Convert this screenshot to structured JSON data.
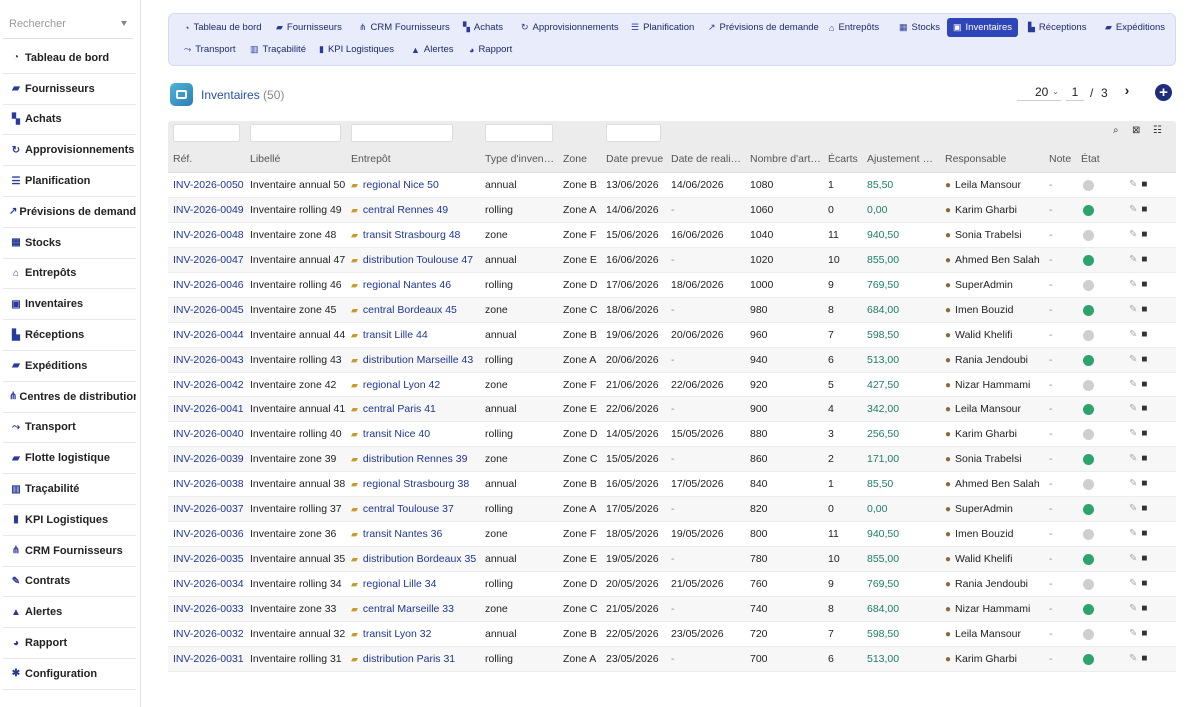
{
  "sidebar": {
    "search_placeholder": "Rechercher",
    "items": [
      {
        "label": "Tableau de bord",
        "icon": "gauge-icon",
        "glyph": "◔"
      },
      {
        "label": "Fournisseurs",
        "icon": "truck-icon",
        "glyph": "▰"
      },
      {
        "label": "Achats",
        "icon": "cart-icon",
        "glyph": "▚"
      },
      {
        "label": "Approvisionnements",
        "icon": "refresh-icon",
        "glyph": "↻"
      },
      {
        "label": "Planification",
        "icon": "list-icon",
        "glyph": "☰"
      },
      {
        "label": "Prévisions de demande",
        "icon": "chart-line-icon",
        "glyph": "↗"
      },
      {
        "label": "Stocks",
        "icon": "boxes-icon",
        "glyph": "▦"
      },
      {
        "label": "Entrepôts",
        "icon": "warehouse-icon",
        "glyph": "⌂"
      },
      {
        "label": "Inventaires",
        "icon": "clipboard-check-icon",
        "glyph": "▣"
      },
      {
        "label": "Réceptions",
        "icon": "dolly-icon",
        "glyph": "▙"
      },
      {
        "label": "Expéditions",
        "icon": "shipping-icon",
        "glyph": "▰"
      },
      {
        "label": "Centres de distribution",
        "icon": "network-icon",
        "glyph": "⋔"
      },
      {
        "label": "Transport",
        "icon": "route-icon",
        "glyph": "⤳"
      },
      {
        "label": "Flotte logistique",
        "icon": "truck-fleet-icon",
        "glyph": "▰"
      },
      {
        "label": "Traçabilité",
        "icon": "barcode-icon",
        "glyph": "▥"
      },
      {
        "label": "KPI Logistiques",
        "icon": "chart-bar-icon",
        "glyph": "▮"
      },
      {
        "label": "CRM Fournisseurs",
        "icon": "sitemap-icon",
        "glyph": "⋔"
      },
      {
        "label": "Contrats",
        "icon": "contract-icon",
        "glyph": "✎"
      },
      {
        "label": "Alertes",
        "icon": "warning-icon",
        "glyph": "▲"
      },
      {
        "label": "Rapport",
        "icon": "pie-chart-icon",
        "glyph": "◕"
      },
      {
        "label": "Configuration",
        "icon": "gear-icon",
        "glyph": "✱"
      }
    ]
  },
  "topnav": {
    "tabs": [
      {
        "label": "Tableau de bord",
        "icon": "gauge-icon",
        "glyph": "◔",
        "active": false
      },
      {
        "label": "Fournisseurs",
        "icon": "truck-icon",
        "glyph": "▰",
        "active": false
      },
      {
        "label": "CRM Fournisseurs",
        "icon": "sitemap-icon",
        "glyph": "⋔",
        "active": false
      },
      {
        "label": "Achats",
        "icon": "cart-icon",
        "glyph": "▚",
        "active": false
      },
      {
        "label": "Approvisionnements",
        "icon": "refresh-icon",
        "glyph": "↻",
        "active": false
      },
      {
        "label": "Planification",
        "icon": "list-icon",
        "glyph": "☰",
        "active": false
      },
      {
        "label": "Prévisions de demande",
        "icon": "chart-line-icon",
        "glyph": "↗",
        "active": false
      },
      {
        "label": "Entrepôts",
        "icon": "warehouse-icon",
        "glyph": "⌂",
        "active": false
      },
      {
        "label": "Stocks",
        "icon": "boxes-icon",
        "glyph": "▦",
        "active": false
      },
      {
        "label": "Inventaires",
        "icon": "clipboard-check-icon",
        "glyph": "▣",
        "active": true
      },
      {
        "label": "Réceptions",
        "icon": "dolly-icon",
        "glyph": "▙",
        "active": false
      },
      {
        "label": "Expéditions",
        "icon": "shipping-icon",
        "glyph": "▰",
        "active": false
      },
      {
        "label": "Transport",
        "icon": "route-icon",
        "glyph": "⤳",
        "active": false
      },
      {
        "label": "Traçabilité",
        "icon": "barcode-icon",
        "glyph": "▥",
        "active": false
      },
      {
        "label": "KPI Logistiques",
        "icon": "chart-bar-icon",
        "glyph": "▮",
        "active": false
      },
      {
        "label": "Alertes",
        "icon": "warning-icon",
        "glyph": "▲",
        "active": false
      },
      {
        "label": "Rapport",
        "icon": "pie-chart-icon",
        "glyph": "◕",
        "active": false
      }
    ]
  },
  "header": {
    "title": "Inventaires",
    "count": "(50)",
    "page_size": "20",
    "current_page": "1",
    "page_sep": "/",
    "total_pages": "3"
  },
  "table": {
    "columns": [
      "Réf.",
      "Libellé",
      "Entrepôt",
      "Type d'inven…",
      "Zone",
      "Date prevue",
      "Date de reali…",
      "Nombre d'art…",
      "Écarts",
      "Ajustement …",
      "Responsable",
      "Note",
      "État"
    ],
    "rows": [
      {
        "ref": "INV-2026-0050",
        "label": "Inventaire annual 50",
        "warehouse": "regional Nice 50",
        "type": "annual",
        "zone": "Zone B",
        "planned": "13/06/2026",
        "done": "14/06/2026",
        "items": "1080",
        "gaps": "1",
        "adjust": "85,50",
        "owner": "Leila Mansour",
        "note": "-",
        "active": false
      },
      {
        "ref": "INV-2026-0049",
        "label": "Inventaire rolling 49",
        "warehouse": "central Rennes 49",
        "type": "rolling",
        "zone": "Zone A",
        "planned": "14/06/2026",
        "done": "-",
        "items": "1060",
        "gaps": "0",
        "adjust": "0,00",
        "owner": "Karim Gharbi",
        "note": "-",
        "active": true
      },
      {
        "ref": "INV-2026-0048",
        "label": "Inventaire zone 48",
        "warehouse": "transit Strasbourg 48",
        "type": "zone",
        "zone": "Zone F",
        "planned": "15/06/2026",
        "done": "16/06/2026",
        "items": "1040",
        "gaps": "11",
        "adjust": "940,50",
        "owner": "Sonia Trabelsi",
        "note": "-",
        "active": false
      },
      {
        "ref": "INV-2026-0047",
        "label": "Inventaire annual 47",
        "warehouse": "distribution Toulouse 47",
        "type": "annual",
        "zone": "Zone E",
        "planned": "16/06/2026",
        "done": "-",
        "items": "1020",
        "gaps": "10",
        "adjust": "855,00",
        "owner": "Ahmed Ben Salah",
        "note": "-",
        "active": true
      },
      {
        "ref": "INV-2026-0046",
        "label": "Inventaire rolling 46",
        "warehouse": "regional Nantes 46",
        "type": "rolling",
        "zone": "Zone D",
        "planned": "17/06/2026",
        "done": "18/06/2026",
        "items": "1000",
        "gaps": "9",
        "adjust": "769,50",
        "owner": "SuperAdmin",
        "note": "-",
        "active": false
      },
      {
        "ref": "INV-2026-0045",
        "label": "Inventaire zone 45",
        "warehouse": "central Bordeaux 45",
        "type": "zone",
        "zone": "Zone C",
        "planned": "18/06/2026",
        "done": "-",
        "items": "980",
        "gaps": "8",
        "adjust": "684,00",
        "owner": "Imen Bouzid",
        "note": "-",
        "active": true
      },
      {
        "ref": "INV-2026-0044",
        "label": "Inventaire annual 44",
        "warehouse": "transit Lille 44",
        "type": "annual",
        "zone": "Zone B",
        "planned": "19/06/2026",
        "done": "20/06/2026",
        "items": "960",
        "gaps": "7",
        "adjust": "598,50",
        "owner": "Walid Khelifi",
        "note": "-",
        "active": false
      },
      {
        "ref": "INV-2026-0043",
        "label": "Inventaire rolling 43",
        "warehouse": "distribution Marseille 43",
        "type": "rolling",
        "zone": "Zone A",
        "planned": "20/06/2026",
        "done": "-",
        "items": "940",
        "gaps": "6",
        "adjust": "513,00",
        "owner": "Rania Jendoubi",
        "note": "-",
        "active": true
      },
      {
        "ref": "INV-2026-0042",
        "label": "Inventaire zone 42",
        "warehouse": "regional Lyon 42",
        "type": "zone",
        "zone": "Zone F",
        "planned": "21/06/2026",
        "done": "22/06/2026",
        "items": "920",
        "gaps": "5",
        "adjust": "427,50",
        "owner": "Nizar Hammami",
        "note": "-",
        "active": false
      },
      {
        "ref": "INV-2026-0041",
        "label": "Inventaire annual 41",
        "warehouse": "central Paris 41",
        "type": "annual",
        "zone": "Zone E",
        "planned": "22/06/2026",
        "done": "-",
        "items": "900",
        "gaps": "4",
        "adjust": "342,00",
        "owner": "Leila Mansour",
        "note": "-",
        "active": true
      },
      {
        "ref": "INV-2026-0040",
        "label": "Inventaire rolling 40",
        "warehouse": "transit Nice 40",
        "type": "rolling",
        "zone": "Zone D",
        "planned": "14/05/2026",
        "done": "15/05/2026",
        "items": "880",
        "gaps": "3",
        "adjust": "256,50",
        "owner": "Karim Gharbi",
        "note": "-",
        "active": false
      },
      {
        "ref": "INV-2026-0039",
        "label": "Inventaire zone 39",
        "warehouse": "distribution Rennes 39",
        "type": "zone",
        "zone": "Zone C",
        "planned": "15/05/2026",
        "done": "-",
        "items": "860",
        "gaps": "2",
        "adjust": "171,00",
        "owner": "Sonia Trabelsi",
        "note": "-",
        "active": true
      },
      {
        "ref": "INV-2026-0038",
        "label": "Inventaire annual 38",
        "warehouse": "regional Strasbourg 38",
        "type": "annual",
        "zone": "Zone B",
        "planned": "16/05/2026",
        "done": "17/05/2026",
        "items": "840",
        "gaps": "1",
        "adjust": "85,50",
        "owner": "Ahmed Ben Salah",
        "note": "-",
        "active": false
      },
      {
        "ref": "INV-2026-0037",
        "label": "Inventaire rolling 37",
        "warehouse": "central Toulouse 37",
        "type": "rolling",
        "zone": "Zone A",
        "planned": "17/05/2026",
        "done": "-",
        "items": "820",
        "gaps": "0",
        "adjust": "0,00",
        "owner": "SuperAdmin",
        "note": "-",
        "active": true
      },
      {
        "ref": "INV-2026-0036",
        "label": "Inventaire zone 36",
        "warehouse": "transit Nantes 36",
        "type": "zone",
        "zone": "Zone F",
        "planned": "18/05/2026",
        "done": "19/05/2026",
        "items": "800",
        "gaps": "11",
        "adjust": "940,50",
        "owner": "Imen Bouzid",
        "note": "-",
        "active": false
      },
      {
        "ref": "INV-2026-0035",
        "label": "Inventaire annual 35",
        "warehouse": "distribution Bordeaux 35",
        "type": "annual",
        "zone": "Zone E",
        "planned": "19/05/2026",
        "done": "-",
        "items": "780",
        "gaps": "10",
        "adjust": "855,00",
        "owner": "Walid Khelifi",
        "note": "-",
        "active": true
      },
      {
        "ref": "INV-2026-0034",
        "label": "Inventaire rolling 34",
        "warehouse": "regional Lille 34",
        "type": "rolling",
        "zone": "Zone D",
        "planned": "20/05/2026",
        "done": "21/05/2026",
        "items": "760",
        "gaps": "9",
        "adjust": "769,50",
        "owner": "Rania Jendoubi",
        "note": "-",
        "active": false
      },
      {
        "ref": "INV-2026-0033",
        "label": "Inventaire zone 33",
        "warehouse": "central Marseille 33",
        "type": "zone",
        "zone": "Zone C",
        "planned": "21/05/2026",
        "done": "-",
        "items": "740",
        "gaps": "8",
        "adjust": "684,00",
        "owner": "Nizar Hammami",
        "note": "-",
        "active": true
      },
      {
        "ref": "INV-2026-0032",
        "label": "Inventaire annual 32",
        "warehouse": "transit Lyon 32",
        "type": "annual",
        "zone": "Zone B",
        "planned": "22/05/2026",
        "done": "23/05/2026",
        "items": "720",
        "gaps": "7",
        "adjust": "598,50",
        "owner": "Leila Mansour",
        "note": "-",
        "active": false
      },
      {
        "ref": "INV-2026-0031",
        "label": "Inventaire rolling 31",
        "warehouse": "distribution Paris 31",
        "type": "rolling",
        "zone": "Zone A",
        "planned": "23/05/2026",
        "done": "-",
        "items": "700",
        "gaps": "6",
        "adjust": "513,00",
        "owner": "Karim Gharbi",
        "note": "-",
        "active": true
      }
    ]
  },
  "colors": {
    "accent": "#2f46b8",
    "link": "#1f3591",
    "adjust": "#1e7d63",
    "status_on": "#2ea36d",
    "status_off": "#cfcfcf"
  }
}
